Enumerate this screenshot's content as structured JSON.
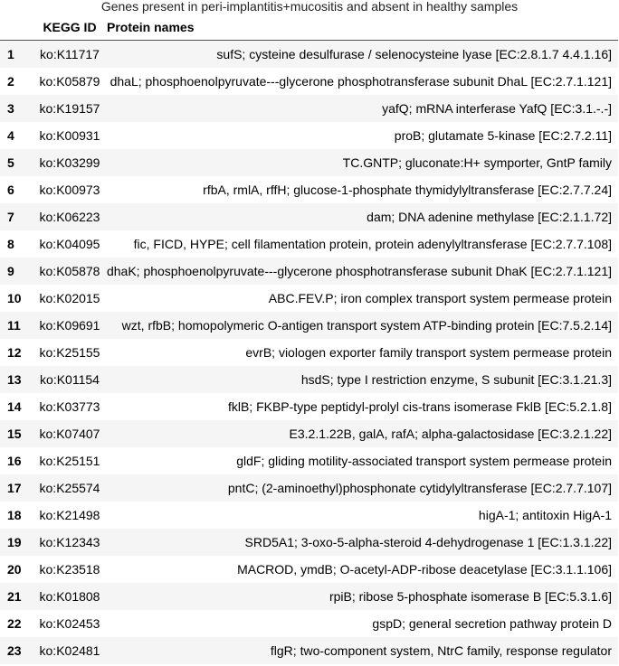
{
  "caption": "Genes present in peri-implantitis+mucositis and absent in healthy samples",
  "columns": {
    "index": "",
    "kegg_id": "KEGG ID",
    "protein": "Protein names"
  },
  "rows": [
    {
      "n": "1",
      "id": "ko:K11717",
      "name": "sufS; cysteine desulfurase / selenocysteine lyase [EC:2.8.1.7 4.4.1.16]"
    },
    {
      "n": "2",
      "id": "ko:K05879",
      "name": "dhaL; phosphoenolpyruvate---glycerone phosphotransferase subunit DhaL [EC:2.7.1.121]"
    },
    {
      "n": "3",
      "id": "ko:K19157",
      "name": "yafQ; mRNA interferase YafQ [EC:3.1.-.-]"
    },
    {
      "n": "4",
      "id": "ko:K00931",
      "name": "proB; glutamate 5-kinase [EC:2.7.2.11]"
    },
    {
      "n": "5",
      "id": "ko:K03299",
      "name": "TC.GNTP; gluconate:H+ symporter, GntP family"
    },
    {
      "n": "6",
      "id": "ko:K00973",
      "name": "rfbA, rmlA, rffH; glucose-1-phosphate thymidylyltransferase [EC:2.7.7.24]"
    },
    {
      "n": "7",
      "id": "ko:K06223",
      "name": "dam; DNA adenine methylase [EC:2.1.1.72]"
    },
    {
      "n": "8",
      "id": "ko:K04095",
      "name": "fic, FICD, HYPE; cell filamentation protein, protein adenylyltransferase [EC:2.7.7.108]"
    },
    {
      "n": "9",
      "id": "ko:K05878",
      "name": "dhaK; phosphoenolpyruvate---glycerone phosphotransferase subunit DhaK [EC:2.7.1.121]"
    },
    {
      "n": "10",
      "id": "ko:K02015",
      "name": "ABC.FEV.P; iron complex transport system permease protein"
    },
    {
      "n": "11",
      "id": "ko:K09691",
      "name": "wzt, rfbB; homopolymeric O-antigen transport system ATP-binding protein [EC:7.5.2.14]"
    },
    {
      "n": "12",
      "id": "ko:K25155",
      "name": "evrB; viologen exporter family transport system permease protein"
    },
    {
      "n": "13",
      "id": "ko:K01154",
      "name": "hsdS; type I restriction enzyme, S subunit [EC:3.1.21.3]"
    },
    {
      "n": "14",
      "id": "ko:K03773",
      "name": "fklB; FKBP-type peptidyl-prolyl cis-trans isomerase FklB [EC:5.2.1.8]"
    },
    {
      "n": "15",
      "id": "ko:K07407",
      "name": "E3.2.1.22B, galA, rafA; alpha-galactosidase [EC:3.2.1.22]"
    },
    {
      "n": "16",
      "id": "ko:K25151",
      "name": "gldF; gliding motility-associated transport system permease protein"
    },
    {
      "n": "17",
      "id": "ko:K25574",
      "name": "pntC; (2-aminoethyl)phosphonate cytidylyltransferase [EC:2.7.7.107]"
    },
    {
      "n": "18",
      "id": "ko:K21498",
      "name": "higA-1; antitoxin HigA-1"
    },
    {
      "n": "19",
      "id": "ko:K12343",
      "name": "SRD5A1; 3-oxo-5-alpha-steroid 4-dehydrogenase 1 [EC:1.3.1.22]"
    },
    {
      "n": "20",
      "id": "ko:K23518",
      "name": "MACROD, ymdB; O-acetyl-ADP-ribose deacetylase [EC:3.1.1.106]"
    },
    {
      "n": "21",
      "id": "ko:K01808",
      "name": "rpiB; ribose 5-phosphate isomerase B [EC:5.3.1.6]"
    },
    {
      "n": "22",
      "id": "ko:K02453",
      "name": "gspD; general secretion pathway protein D"
    },
    {
      "n": "23",
      "id": "ko:K02481",
      "name": "flgR; two-component system, NtrC family, response regulator"
    }
  ]
}
